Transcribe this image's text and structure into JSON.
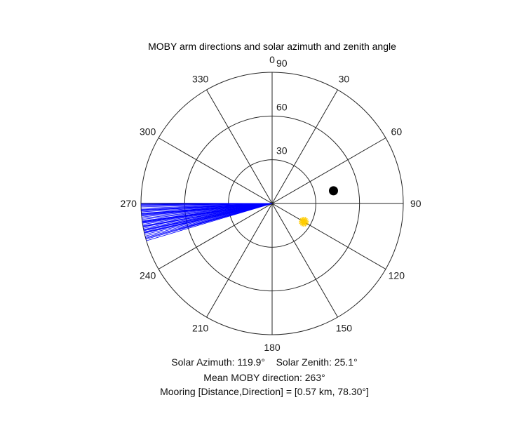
{
  "chart_data": {
    "type": "polar",
    "title": "MOBY arm directions and solar azimuth and zenith angle",
    "theta_direction": "clockwise",
    "theta_zero": "top",
    "r_max": 90,
    "r_rings": [
      30,
      60,
      90
    ],
    "r_tick_labels": [
      "30",
      "60",
      "90"
    ],
    "theta_ticks": [
      0,
      30,
      60,
      90,
      120,
      150,
      180,
      210,
      240,
      270,
      300,
      330
    ],
    "theta_tick_labels": [
      "0",
      "30",
      "60",
      "90",
      "120",
      "150",
      "180",
      "210",
      "240",
      "270",
      "300",
      "330"
    ],
    "arm_direction_lines": {
      "color": "#0000ff",
      "r": 90,
      "directions_deg": [
        253.5,
        254.2,
        255.0,
        255.6,
        256.3,
        256.9,
        257.5,
        258.0,
        258.6,
        259.1,
        259.7,
        260.2,
        260.8,
        261.3,
        261.9,
        262.4,
        263.0,
        263.5,
        264.1,
        264.6,
        265.2,
        265.7,
        266.3,
        266.8,
        267.4,
        267.9,
        268.5,
        269.0,
        269.6,
        270.2,
        254.6,
        257.2,
        259.9,
        262.1,
        264.9,
        267.1,
        269.3,
        261.6,
        258.3,
        265.5
      ]
    },
    "solar_marker": {
      "azimuth_deg": 119.9,
      "zenith_deg": 25.1,
      "color": "#ffcc00"
    },
    "mooring_marker": {
      "direction_deg": 78.3,
      "r": 43,
      "color": "#000000"
    }
  },
  "annotations": {
    "line1": "Solar Azimuth: 119.9°    Solar Zenith: 25.1°",
    "line2": "Mean MOBY direction: 263°",
    "line3": "Mooring [Distance,Direction] = [0.57 km, 78.30°]"
  }
}
